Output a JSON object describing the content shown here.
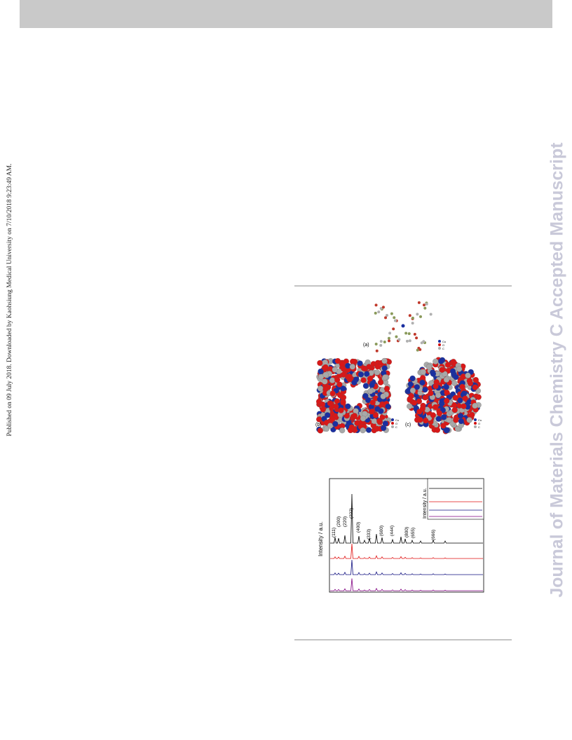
{
  "margin_note": "Published on 09 July 2018. Downloaded by Kaohsiung Medical University on 7/10/2018 9:23:49 AM.",
  "watermark": "Journal of Materials Chemistry C Accepted Manuscript",
  "figure_1": {
    "panel_labels": [
      "(a)",
      "(b)",
      "(c)"
    ],
    "legend": [
      "Cu",
      "O",
      "C"
    ]
  },
  "figure_2": {
    "y_label": "Intensity / a.u.",
    "inset_y_label": "Intensity / a.u.",
    "peaks": [
      "(111)",
      "(200)",
      "(220)",
      "(222)",
      "(400)",
      "(333)",
      "(600)",
      "(444)",
      "(800)",
      "(655)",
      "(666)"
    ]
  }
}
